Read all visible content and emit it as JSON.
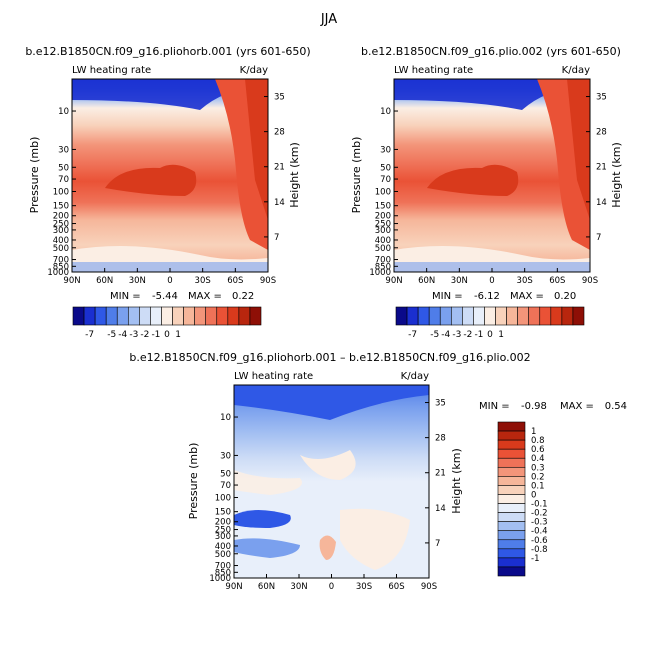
{
  "figure_title": "JJA",
  "colors": {
    "blues": [
      "#0a0a8a",
      "#1a2fd0",
      "#2f58e6",
      "#4f7de9",
      "#7aa0ee",
      "#a3bff2",
      "#cddcf6",
      "#e8effa"
    ],
    "reds": [
      "#fbeee4",
      "#f8d2bb",
      "#f6b69a",
      "#f3957a",
      "#ef7258",
      "#ea5236",
      "#d93a1c",
      "#b8260e",
      "#8e0f06"
    ]
  },
  "chart_data": [
    {
      "type": "heatmap",
      "title": "b.e12.B1850CN.f09_g16.pliohorb.001 (yrs 601-650)",
      "left_label": "LW heating rate",
      "right_label": "K/day",
      "ylabel": "Pressure (mb)",
      "ylabel_right": "Height (km)",
      "xticks": [
        "90N",
        "60N",
        "30N",
        "0",
        "30S",
        "60S",
        "90S"
      ],
      "yticks": [
        "10",
        "30",
        "50",
        "70",
        "100",
        "150",
        "200",
        "250",
        "300",
        "400",
        "500",
        "700",
        "850",
        "1000"
      ],
      "yticks_right": [
        "35",
        "28",
        "21",
        "14",
        "7"
      ],
      "min_label": "MIN =",
      "min_value": "-5.44",
      "max_label": "MAX =",
      "max_value": "0.22",
      "colorbar_labels": [
        "-7",
        "-5",
        "-4",
        "-3",
        "-2",
        "-1",
        "0",
        "1"
      ]
    },
    {
      "type": "heatmap",
      "title": "b.e12.B1850CN.f09_g16.plio.002 (yrs 601-650)",
      "left_label": "LW heating rate",
      "right_label": "K/day",
      "ylabel": "Pressure (mb)",
      "ylabel_right": "Height (km)",
      "xticks": [
        "90N",
        "60N",
        "30N",
        "0",
        "30S",
        "60S",
        "90S"
      ],
      "yticks": [
        "10",
        "30",
        "50",
        "70",
        "100",
        "150",
        "200",
        "250",
        "300",
        "400",
        "500",
        "700",
        "850",
        "1000"
      ],
      "yticks_right": [
        "35",
        "28",
        "21",
        "14",
        "7"
      ],
      "min_label": "MIN =",
      "min_value": "-6.12",
      "max_label": "MAX =",
      "max_value": "0.20",
      "colorbar_labels": [
        "-7",
        "-5",
        "-4",
        "-3",
        "-2",
        "-1",
        "0",
        "1"
      ]
    },
    {
      "type": "heatmap",
      "title": "b.e12.B1850CN.f09_g16.pliohorb.001 – b.e12.B1850CN.f09_g16.plio.002",
      "left_label": "LW heating rate",
      "right_label": "K/day",
      "ylabel": "Pressure (mb)",
      "ylabel_right": "Height (km)",
      "xticks": [
        "90N",
        "60N",
        "30N",
        "0",
        "30S",
        "60S",
        "90S"
      ],
      "yticks": [
        "10",
        "30",
        "50",
        "70",
        "100",
        "150",
        "200",
        "250",
        "300",
        "400",
        "500",
        "700",
        "850",
        "1000"
      ],
      "yticks_right": [
        "35",
        "28",
        "21",
        "14",
        "7"
      ],
      "min_label": "MIN =",
      "min_value": "-0.98",
      "max_label": "MAX =",
      "max_value": "0.54",
      "colorbar_labels": [
        "1",
        "0.8",
        "0.6",
        "0.4",
        "0.3",
        "0.2",
        "0.1",
        "0",
        "-0.1",
        "-0.2",
        "-0.3",
        "-0.4",
        "-0.6",
        "-0.8",
        "-1"
      ]
    }
  ]
}
